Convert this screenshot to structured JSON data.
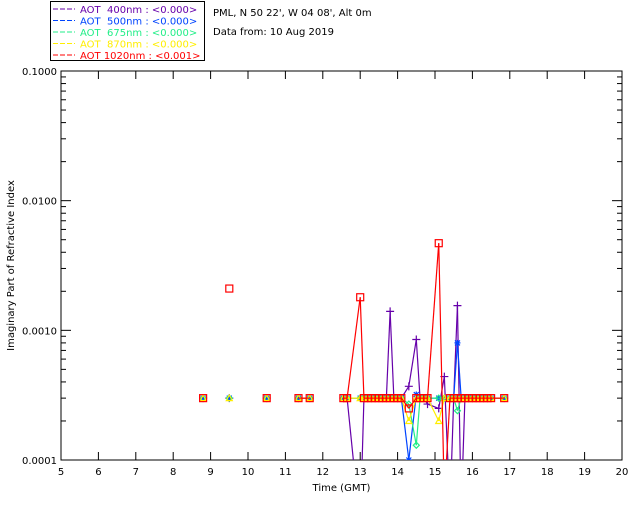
{
  "chart_data": {
    "type": "line",
    "site": "PML, N 50 22', W 04 08', Alt 0m",
    "date_line": "Data from: 10 Aug 2019",
    "xlabel": "Time (GMT)",
    "ylabel": "Imaginary Part of Refractive Index",
    "xlim": [
      5,
      20
    ],
    "ylim": [
      0.0001,
      0.1
    ],
    "yscale": "log",
    "x_ticks": [
      "5",
      "6",
      "7",
      "8",
      "9",
      "10",
      "11",
      "12",
      "13",
      "14",
      "15",
      "16",
      "17",
      "18",
      "19",
      "20"
    ],
    "y_ticks": [
      "0.0001",
      "0.0010",
      "0.0100",
      "0.1000"
    ],
    "x": [
      8.8,
      9.5,
      10.5,
      11.35,
      11.65,
      12.55,
      12.65,
      13.0,
      13.1,
      13.2,
      13.3,
      13.4,
      13.5,
      13.6,
      13.7,
      13.8,
      13.9,
      14.0,
      14.1,
      14.3,
      14.5,
      14.6,
      14.7,
      14.8,
      15.1,
      15.25,
      15.4,
      15.5,
      15.6,
      15.7,
      15.8,
      15.9,
      16.0,
      16.1,
      16.2,
      16.3,
      16.4,
      16.5,
      16.85
    ],
    "series": [
      {
        "name": "AOT  400nm : <0.000>",
        "color": "#6600aa",
        "marker": "plus",
        "values": [
          0.0003,
          0.0003,
          0.0003,
          0.0003,
          0.0003,
          0.0003,
          0.0003,
          3e-05,
          0.0003,
          0.0003,
          0.0003,
          0.0003,
          0.0003,
          0.0003,
          0.0003,
          0.0014,
          0.0003,
          0.0003,
          0.0003,
          0.00037,
          0.00085,
          0.0003,
          0.0003,
          0.00027,
          0.00025,
          0.00044,
          4e-05,
          0.0003,
          0.00155,
          4e-05,
          0.0003,
          0.0003,
          0.0003,
          0.0003,
          0.0003,
          0.0003,
          0.0003,
          0.0003,
          0.0003
        ]
      },
      {
        "name": "AOT  500nm : <0.000>",
        "color": "#0044ff",
        "marker": "star",
        "values": [
          0.0003,
          0.0003,
          0.0003,
          0.0003,
          0.0003,
          0.0003,
          0.0003,
          0.0003,
          0.0003,
          0.0003,
          0.0003,
          0.0003,
          0.0003,
          0.0003,
          0.0003,
          0.0003,
          0.0003,
          0.0003,
          0.0003,
          0.0001,
          0.00032,
          0.0003,
          0.0003,
          0.0003,
          0.0003,
          0.0003,
          0.0003,
          0.0003,
          0.0008,
          0.0003,
          0.0003,
          0.0003,
          0.0003,
          0.0003,
          0.0003,
          0.0003,
          0.0003,
          0.0003,
          0.0003
        ]
      },
      {
        "name": "AOT  675nm : <0.000>",
        "color": "#22ee88",
        "marker": "diamond",
        "values": [
          0.0003,
          0.0003,
          0.0003,
          0.0003,
          0.0003,
          0.0003,
          0.0003,
          0.0003,
          0.0003,
          0.0003,
          0.0003,
          0.0003,
          0.0003,
          0.0003,
          0.0003,
          0.0003,
          0.0003,
          0.0003,
          0.0003,
          0.00027,
          0.00013,
          0.0003,
          0.0003,
          0.0003,
          0.0003,
          0.0003,
          0.0003,
          0.0003,
          0.00024,
          0.0003,
          0.0003,
          0.0003,
          0.0003,
          0.0003,
          0.0003,
          0.0003,
          0.0003,
          0.0003,
          0.0003
        ]
      },
      {
        "name": "AOT  870nm : <0.000>",
        "color": "#ffee00",
        "marker": "triangle",
        "values": [
          0.0003,
          0.0003,
          0.0003,
          0.0003,
          0.0003,
          0.0003,
          0.0003,
          0.0003,
          0.0003,
          0.0003,
          0.0003,
          0.0003,
          0.0003,
          0.0003,
          0.0003,
          0.0003,
          0.0003,
          0.0003,
          0.0003,
          0.0002,
          0.0003,
          0.0003,
          0.0003,
          0.0003,
          0.0002,
          0.0003,
          0.0003,
          0.0003,
          0.0003,
          0.0003,
          0.0003,
          0.0003,
          0.0003,
          0.0003,
          0.0003,
          0.0003,
          0.0003,
          0.0003,
          0.0003
        ]
      },
      {
        "name": "AOT 1020nm : <0.001>",
        "color": "#ff0000",
        "marker": "square",
        "values": [
          0.0003,
          0.0021,
          0.0003,
          0.0003,
          0.0003,
          0.0003,
          0.0003,
          0.0018,
          0.0003,
          0.0003,
          0.0003,
          0.0003,
          0.0003,
          0.0003,
          0.0003,
          0.0003,
          0.0003,
          0.0003,
          0.0003,
          0.00025,
          0.0003,
          0.0003,
          0.0003,
          0.0003,
          0.0047,
          5e-05,
          0.0003,
          0.0003,
          0.0003,
          0.0003,
          0.0003,
          0.0003,
          0.0003,
          0.0003,
          0.0003,
          0.0003,
          0.0003,
          0.0003,
          0.0003
        ]
      }
    ]
  }
}
